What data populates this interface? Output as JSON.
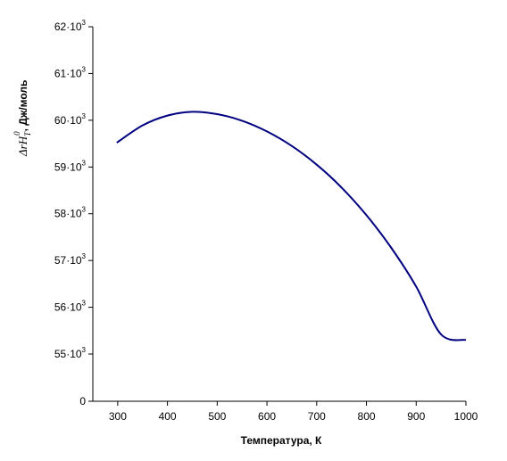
{
  "chart_data": {
    "type": "line",
    "title": "",
    "xlabel": "Температура, К",
    "ylabel": {
      "delta": "Δ",
      "r": "r",
      "H": "H",
      "sub": "T",
      "sup": "0",
      "unit": ", Дж/моль"
    },
    "xlim": [
      250,
      1000
    ],
    "ylim": [
      0,
      62000
    ],
    "x_ticks": [
      {
        "value": 300,
        "label": "300"
      },
      {
        "value": 400,
        "label": "400"
      },
      {
        "value": 500,
        "label": "500"
      },
      {
        "value": 600,
        "label": "600"
      },
      {
        "value": 700,
        "label": "700"
      },
      {
        "value": 800,
        "label": "800"
      },
      {
        "value": 900,
        "label": "900"
      },
      {
        "value": 1000,
        "label": "1000"
      }
    ],
    "y_ticks": [
      {
        "value": 0,
        "base": "0",
        "exp": ""
      },
      {
        "value": 55000,
        "base": "55·10",
        "exp": "3"
      },
      {
        "value": 56000,
        "base": "56·10",
        "exp": "3"
      },
      {
        "value": 57000,
        "base": "57·10",
        "exp": "3"
      },
      {
        "value": 58000,
        "base": "58·10",
        "exp": "3"
      },
      {
        "value": 59000,
        "base": "59·10",
        "exp": "3"
      },
      {
        "value": 60000,
        "base": "60·10",
        "exp": "3"
      },
      {
        "value": 61000,
        "base": "61·10",
        "exp": "3"
      },
      {
        "value": 62000,
        "base": "62·10",
        "exp": "3"
      }
    ],
    "axis_break": true,
    "grid": false,
    "series": [
      {
        "color": "#000080",
        "x": [
          298,
          350,
          400,
          450,
          500,
          550,
          600,
          650,
          700,
          750,
          800,
          850,
          900,
          950,
          1000
        ],
        "y": [
          59520,
          59890,
          60100,
          60180,
          60130,
          59990,
          59760,
          59450,
          59050,
          58560,
          57970,
          57270,
          56440,
          55420,
          55300
        ]
      }
    ]
  }
}
